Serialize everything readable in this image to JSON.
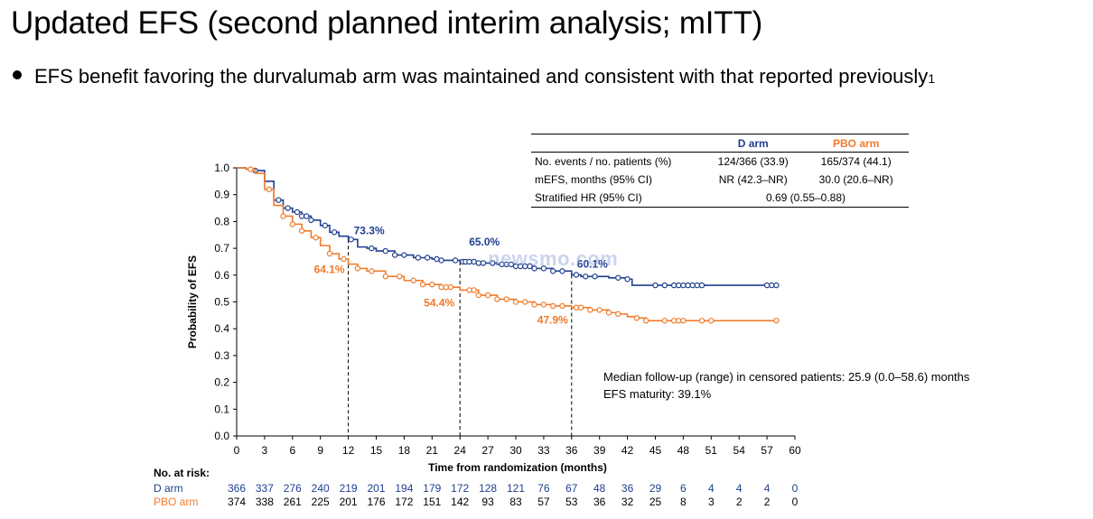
{
  "title": "Updated EFS (second planned interim analysis; mITT)",
  "bullet": {
    "text": "EFS benefit favoring the durvalumab arm was maintained and consistent with that reported previously",
    "superscript": "1"
  },
  "table": {
    "headers": [
      "",
      "D arm",
      "PBO arm"
    ],
    "rows": [
      [
        "No. events / no. patients (%)",
        "124/366 (33.9)",
        "165/374 (44.1)"
      ],
      [
        "mEFS, months (95% CI)",
        "NR (42.3–NR)",
        "30.0 (20.6–NR)"
      ],
      [
        "Stratified HR (95% CI)",
        "0.69 (0.55–0.88)"
      ]
    ]
  },
  "followup": {
    "line1": "Median follow-up (range) in censored patients: 25.9 (0.0–58.6) months",
    "line2": "EFS maturity: 39.1%"
  },
  "watermark": "newsmo.com",
  "risk": {
    "header": "No. at risk:",
    "d_label": "D arm",
    "p_label": "PBO arm",
    "d": [
      "366",
      "337",
      "276",
      "240",
      "219",
      "201",
      "194",
      "179",
      "172",
      "128",
      "121",
      "76",
      "67",
      "48",
      "36",
      "29",
      "6",
      "4",
      "4",
      "4",
      "0"
    ],
    "p": [
      "374",
      "338",
      "261",
      "225",
      "201",
      "176",
      "172",
      "151",
      "142",
      "93",
      "83",
      "57",
      "53",
      "36",
      "32",
      "25",
      "8",
      "3",
      "2",
      "2",
      "0"
    ]
  },
  "colors": {
    "d": "#1f3f8f",
    "p": "#f07a2a",
    "watermark": "#8ca0dc"
  },
  "chart_data": {
    "type": "line",
    "title": "",
    "xlabel": "Time from randomization (months)",
    "ylabel": "Probability of EFS",
    "xlim": [
      0,
      60
    ],
    "ylim": [
      0,
      1.0
    ],
    "x_ticks": [
      "0",
      "3",
      "6",
      "9",
      "12",
      "15",
      "18",
      "21",
      "24",
      "27",
      "30",
      "33",
      "36",
      "39",
      "42",
      "45",
      "48",
      "51",
      "54",
      "57",
      "60"
    ],
    "y_ticks": [
      "0.0",
      "0.1",
      "0.2",
      "0.3",
      "0.4",
      "0.5",
      "0.6",
      "0.7",
      "0.8",
      "0.9",
      "1.0"
    ],
    "reference_lines_x": [
      12,
      24,
      36
    ],
    "series": [
      {
        "name": "D arm",
        "color": "#1f3f8f",
        "points": [
          [
            0,
            1.0
          ],
          [
            1,
            0.995
          ],
          [
            2,
            0.99
          ],
          [
            3,
            0.95
          ],
          [
            4,
            0.88
          ],
          [
            5,
            0.85
          ],
          [
            6,
            0.835
          ],
          [
            7,
            0.82
          ],
          [
            8,
            0.805
          ],
          [
            9,
            0.785
          ],
          [
            10,
            0.76
          ],
          [
            11,
            0.745
          ],
          [
            12,
            0.733
          ],
          [
            13,
            0.705
          ],
          [
            14,
            0.7
          ],
          [
            15,
            0.69
          ],
          [
            17,
            0.675
          ],
          [
            19,
            0.665
          ],
          [
            21,
            0.66
          ],
          [
            22,
            0.655
          ],
          [
            24,
            0.65
          ],
          [
            26,
            0.645
          ],
          [
            28,
            0.64
          ],
          [
            30,
            0.633
          ],
          [
            32,
            0.625
          ],
          [
            34,
            0.615
          ],
          [
            36,
            0.601
          ],
          [
            37,
            0.595
          ],
          [
            40,
            0.59
          ],
          [
            42,
            0.585
          ],
          [
            42.5,
            0.562
          ],
          [
            47,
            0.562
          ],
          [
            58,
            0.562
          ]
        ],
        "censor_x": [
          2,
          4.5,
          5.5,
          6.5,
          7,
          7.5,
          8,
          9.5,
          10.5,
          12.3,
          14.5,
          16,
          17,
          18,
          19.5,
          20.5,
          21.5,
          22,
          23.5,
          24.3,
          24.6,
          25,
          25.5,
          26,
          26.5,
          27.5,
          28.5,
          29,
          29.5,
          30,
          30.5,
          31,
          31.5,
          32,
          33,
          34,
          35,
          36.5,
          37.5,
          38.5,
          41,
          42,
          45,
          46,
          47,
          47.5,
          48,
          48.5,
          49,
          49.5,
          50,
          57,
          57.5,
          58
        ],
        "labels": [
          {
            "x": 12,
            "y": 0.733,
            "text": "73.3%"
          },
          {
            "x": 24,
            "y": 0.65,
            "text": "65.0%"
          },
          {
            "x": 36,
            "y": 0.601,
            "text": "60.1%"
          }
        ]
      },
      {
        "name": "PBO arm",
        "color": "#f07a2a",
        "points": [
          [
            0,
            1.0
          ],
          [
            1,
            0.995
          ],
          [
            2,
            0.98
          ],
          [
            3,
            0.92
          ],
          [
            4,
            0.86
          ],
          [
            5,
            0.82
          ],
          [
            6,
            0.79
          ],
          [
            7,
            0.765
          ],
          [
            8,
            0.74
          ],
          [
            9,
            0.71
          ],
          [
            10,
            0.68
          ],
          [
            11,
            0.66
          ],
          [
            12,
            0.641
          ],
          [
            13,
            0.625
          ],
          [
            14,
            0.615
          ],
          [
            16,
            0.595
          ],
          [
            18,
            0.58
          ],
          [
            20,
            0.565
          ],
          [
            22,
            0.555
          ],
          [
            24,
            0.544
          ],
          [
            26,
            0.525
          ],
          [
            28,
            0.51
          ],
          [
            30,
            0.5
          ],
          [
            32,
            0.49
          ],
          [
            34,
            0.485
          ],
          [
            36,
            0.479
          ],
          [
            38,
            0.47
          ],
          [
            40,
            0.46
          ],
          [
            41,
            0.455
          ],
          [
            42,
            0.445
          ],
          [
            43,
            0.44
          ],
          [
            44,
            0.43
          ],
          [
            50,
            0.43
          ],
          [
            58,
            0.43
          ]
        ],
        "censor_x": [
          1.5,
          3.5,
          5,
          6,
          7,
          8.5,
          10,
          11.5,
          13,
          14.5,
          16,
          17.5,
          19,
          20,
          21,
          22,
          22.5,
          23,
          25,
          25.5,
          26,
          27,
          28,
          29,
          30,
          31,
          32,
          33,
          34,
          35,
          36.5,
          37,
          38,
          39,
          40,
          41,
          43,
          44,
          46,
          47,
          47.5,
          48,
          50,
          51,
          58
        ],
        "labels": [
          {
            "x": 12,
            "y": 0.641,
            "text": "64.1%"
          },
          {
            "x": 24,
            "y": 0.544,
            "text": "54.4%"
          },
          {
            "x": 36,
            "y": 0.479,
            "text": "47.9%"
          }
        ]
      }
    ]
  }
}
